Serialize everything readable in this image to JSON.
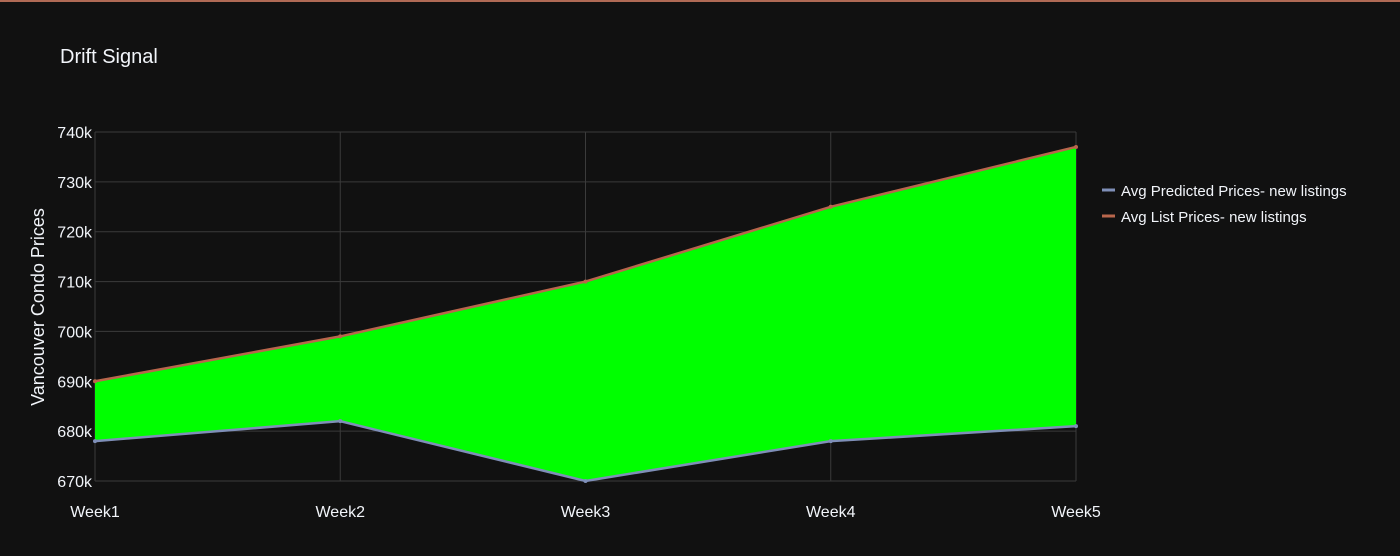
{
  "chart_data": {
    "type": "area",
    "title": "Drift Signal",
    "xlabel": "",
    "ylabel": "Vancouver Condo Prices",
    "categories": [
      "Week1",
      "Week2",
      "Week3",
      "Week4",
      "Week5"
    ],
    "ylim": [
      670000,
      740000
    ],
    "yticks": [
      670000,
      680000,
      690000,
      700000,
      710000,
      720000,
      730000,
      740000
    ],
    "ytick_labels": [
      "670k",
      "680k",
      "690k",
      "700k",
      "710k",
      "720k",
      "730k",
      "740k"
    ],
    "grid": true,
    "legend_position": "right",
    "fill_between_series": true,
    "series": [
      {
        "name": "Avg Predicted Prices- new listings",
        "values": [
          678000,
          682000,
          670000,
          678000,
          681000
        ],
        "color": "#7f8fb8"
      },
      {
        "name": "Avg List Prices- new listings",
        "values": [
          690000,
          699000,
          710000,
          725000,
          737000
        ],
        "color": "#b9664c"
      }
    ],
    "fill_color": "#00ff00"
  },
  "colors": {
    "background": "#111111",
    "grid": "#3b3b3b",
    "text": "#f2f5fa"
  }
}
